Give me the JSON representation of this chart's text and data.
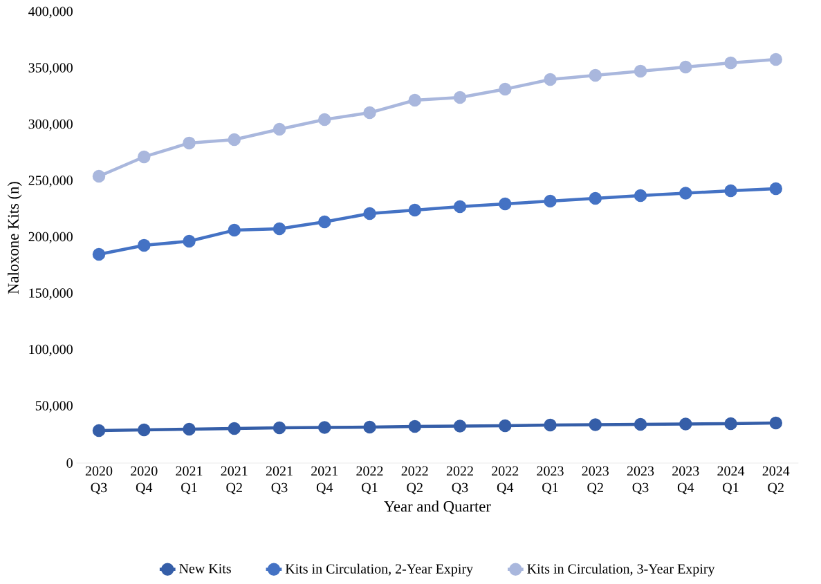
{
  "chart_data": {
    "type": "line",
    "xlabel": "Year and Quarter",
    "ylabel": "Naloxone Kits (n)",
    "categories": [
      "2020 Q3",
      "2020 Q4",
      "2021 Q1",
      "2021 Q2",
      "2021 Q3",
      "2021 Q4",
      "2022 Q1",
      "2022 Q2",
      "2022 Q3",
      "2022 Q4",
      "2023 Q1",
      "2023 Q2",
      "2023 Q3",
      "2023 Q4",
      "2024 Q1",
      "2024 Q2"
    ],
    "series": [
      {
        "name": "New Kits",
        "color": "#355ea8",
        "values": [
          28800,
          29400,
          30100,
          30700,
          31300,
          31600,
          31900,
          32500,
          32800,
          33100,
          33700,
          34000,
          34400,
          34700,
          35000,
          35600
        ]
      },
      {
        "name": "Kits in Circulation, 2-Year Expiry",
        "color": "#4472c4",
        "values": [
          185300,
          193300,
          196900,
          206700,
          208000,
          214100,
          221500,
          224500,
          227600,
          230100,
          232500,
          235000,
          237400,
          239600,
          241700,
          243600
        ]
      },
      {
        "name": "Kits in Circulation, 3-Year Expiry",
        "color": "#a9b7dd",
        "values": [
          254600,
          271800,
          284100,
          287100,
          296300,
          304900,
          311000,
          322100,
          324500,
          331900,
          340500,
          344200,
          347900,
          351500,
          355200,
          358300
        ]
      }
    ],
    "ylim": [
      0,
      400000
    ],
    "yticks": [
      {
        "value": 0,
        "label": "0"
      },
      {
        "value": 50000,
        "label": "50,000"
      },
      {
        "value": 100000,
        "label": "100,000"
      },
      {
        "value": 150000,
        "label": "150,000"
      },
      {
        "value": 200000,
        "label": "200,000"
      },
      {
        "value": 250000,
        "label": "250,000"
      },
      {
        "value": 300000,
        "label": "300,000"
      },
      {
        "value": 350000,
        "label": "350,000"
      },
      {
        "value": 400000,
        "label": "400,000"
      }
    ],
    "grid": false,
    "legend": "bottom",
    "marker": "circle",
    "line_style": "solid"
  }
}
